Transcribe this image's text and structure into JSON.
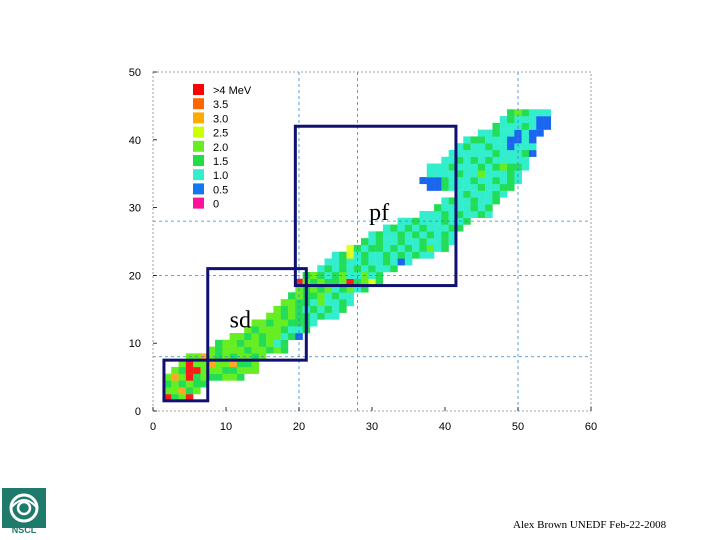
{
  "chart_data": {
    "type": "heatmap",
    "title": "",
    "xlabel": "",
    "ylabel": "",
    "xlim": [
      0,
      60
    ],
    "ylim": [
      0,
      50
    ],
    "xticks": [
      "0",
      "10",
      "20",
      "30",
      "40",
      "50",
      "60"
    ],
    "yticks": [
      "0",
      "10",
      "20",
      "30",
      "40",
      "50"
    ],
    "grid": "dashed at 20, 28, 50 (x) and 8, 20, 28 (y)",
    "legend": {
      "placement": "top-left",
      "entries": [
        {
          "label": ">4 MeV",
          "color": "#ff0000"
        },
        {
          "label": "3.5",
          "color": "#ff6600"
        },
        {
          "label": "3.0",
          "color": "#ffaa00"
        },
        {
          "label": "2.5",
          "color": "#ccff00"
        },
        {
          "label": "2.0",
          "color": "#66ee22"
        },
        {
          "label": "1.5",
          "color": "#22dd44"
        },
        {
          "label": "1.0",
          "color": "#33eecc"
        },
        {
          "label": "0.5",
          "color": "#1177ee"
        },
        {
          "label": "0",
          "color": "#ff1199"
        }
      ]
    },
    "regions": [
      {
        "label": "",
        "x": [
          1.5,
          7.5
        ],
        "y": [
          1.5,
          7.5
        ]
      },
      {
        "label": "sd",
        "x": [
          7.5,
          21.0
        ],
        "y": [
          7.5,
          21.0
        ]
      },
      {
        "label": "pf",
        "x": [
          19.5,
          41.5
        ],
        "y": [
          18.5,
          42.0
        ]
      }
    ],
    "cell_rows": [
      {
        "y": 2,
        "x_start": 2,
        "values": [
          4,
          1.5,
          2,
          4
        ]
      },
      {
        "y": 3,
        "x_start": 2,
        "values": [
          2,
          2,
          3,
          1.5,
          2
        ]
      },
      {
        "y": 4,
        "x_start": 2,
        "values": [
          1.5,
          2,
          1.5,
          2,
          1.5,
          1.5
        ]
      },
      {
        "y": 5,
        "x_start": 2,
        "values": [
          2,
          3,
          2,
          4,
          1.5,
          2,
          1.5,
          1.5,
          2,
          2,
          1.5
        ]
      },
      {
        "y": 6,
        "x_start": 3,
        "values": [
          2,
          1.5,
          4,
          4,
          2,
          2,
          2,
          1.5,
          1.5,
          2,
          2,
          2
        ]
      },
      {
        "y": 7,
        "x_start": 4,
        "values": [
          2,
          4,
          2,
          2,
          3,
          2,
          2,
          3,
          1.5,
          1.5,
          2
        ]
      },
      {
        "y": 8,
        "x_start": 5,
        "values": [
          2,
          2,
          3,
          2,
          1.5,
          2,
          1.5,
          2,
          2,
          1.5,
          2
        ]
      },
      {
        "y": 9,
        "x_start": 8,
        "values": [
          2,
          1.5,
          2,
          2,
          2,
          1.5,
          2,
          2,
          1.5,
          2,
          1.5
        ]
      },
      {
        "y": 10,
        "x_start": 9,
        "values": [
          1.5,
          2,
          2,
          1.5,
          2,
          2,
          1.5,
          2,
          1,
          1.5
        ]
      },
      {
        "y": 11,
        "x_start": 11,
        "values": [
          2,
          2,
          1.5,
          2,
          1.5,
          2,
          2,
          1,
          1.5,
          0.5
        ]
      },
      {
        "y": 12,
        "x_start": 13,
        "values": [
          2,
          1.5,
          2,
          2,
          2,
          1.5,
          1,
          1,
          1.5
        ]
      },
      {
        "y": 13,
        "x_start": 14,
        "values": [
          2,
          2,
          1.5,
          2,
          2,
          1.5,
          1.5,
          1.5,
          1
        ]
      },
      {
        "y": 14,
        "x_start": 16,
        "values": [
          2,
          2,
          1.5,
          2,
          1.5,
          1.5,
          1,
          1.5,
          1,
          1
        ]
      },
      {
        "y": 15,
        "x_start": 17,
        "values": [
          2,
          1.5,
          2,
          1.5,
          1,
          1.5,
          1,
          1.5,
          1,
          1.5
        ]
      },
      {
        "y": 16,
        "x_start": 18,
        "values": [
          2,
          2,
          1.5,
          1.5,
          1,
          2,
          1,
          1,
          1.5,
          1
        ]
      },
      {
        "y": 17,
        "x_start": 19,
        "values": [
          1.5,
          2,
          1.5,
          1.5,
          2,
          1,
          1.5,
          1,
          1
        ]
      },
      {
        "y": 18,
        "x_start": 20,
        "values": [
          2,
          1.5,
          2,
          1.5,
          2,
          1,
          1.5,
          2,
          1,
          1.5
        ]
      },
      {
        "y": 19,
        "x_start": 20,
        "values": [
          4,
          2,
          1.5,
          2,
          1.5,
          1.5,
          2,
          4,
          1.5,
          2,
          2.5,
          1.5
        ]
      },
      {
        "y": 20,
        "x_start": 21,
        "values": [
          1.5,
          2,
          1.5,
          1,
          1.5,
          2,
          1,
          1,
          2,
          1,
          1.5
        ]
      },
      {
        "y": 21,
        "x_start": 23,
        "values": [
          1,
          1.5,
          1,
          1.5,
          1,
          1.5,
          1,
          1.5,
          1,
          1,
          1.5
        ]
      },
      {
        "y": 22,
        "x_start": 24,
        "values": [
          1,
          1,
          1.5,
          1,
          1,
          1.5,
          1,
          1,
          1.5,
          1,
          0.5,
          1
        ]
      },
      {
        "y": 23,
        "x_start": 25,
        "values": [
          1,
          1.5,
          2.5,
          1,
          1.5,
          1,
          1,
          1.5,
          1,
          1.5,
          1,
          1.5,
          1,
          1
        ]
      },
      {
        "y": 24,
        "x_start": 27,
        "values": [
          2.5,
          1.5,
          1,
          1.5,
          1.5,
          1,
          1.5,
          1,
          1.5,
          1,
          1.5,
          2,
          1,
          1.5
        ]
      },
      {
        "y": 25,
        "x_start": 29,
        "values": [
          1.5,
          1,
          1.5,
          1,
          1,
          1.5,
          1,
          1,
          1.5,
          1,
          1,
          1.5,
          1
        ]
      },
      {
        "y": 26,
        "x_start": 30,
        "values": [
          1,
          1.5,
          1,
          1,
          1.5,
          1,
          1.5,
          1,
          1.5,
          1,
          1.5,
          1
        ]
      },
      {
        "y": 27,
        "x_start": 32,
        "values": [
          1,
          1.5,
          1,
          1.5,
          1,
          1.5,
          1,
          1,
          1,
          1.5,
          1.5
        ]
      },
      {
        "y": 28,
        "x_start": 34,
        "values": [
          1,
          1,
          1.5,
          1,
          1,
          1,
          1.5,
          1,
          1,
          1.5
        ]
      },
      {
        "y": 29,
        "x_start": 37,
        "values": [
          1,
          1,
          1,
          1.5,
          1,
          1.5,
          1,
          1,
          1.5,
          1
        ]
      },
      {
        "y": 30,
        "x_start": 39,
        "values": [
          1.5,
          1,
          1,
          1,
          1,
          1.5,
          1,
          1.5
        ]
      },
      {
        "y": 31,
        "x_start": 40,
        "values": [
          1,
          1.5,
          1,
          1,
          1.5,
          1,
          1,
          1.5
        ]
      },
      {
        "y": 32,
        "x_start": 42,
        "values": [
          1,
          1.5,
          1,
          1,
          1,
          1.5,
          1
        ]
      },
      {
        "y": 33,
        "x_start": 43,
        "values": [
          1,
          1,
          1.5,
          1,
          1,
          1.5,
          1.5
        ]
      },
      {
        "y": 34,
        "x_start": 46,
        "values": [
          1,
          1.5,
          1,
          1,
          1.5
        ]
      },
      {
        "y": 35,
        "x_start": 48,
        "values": [
          1.5,
          1,
          1
        ]
      },
      {
        "y": 36,
        "x_start": 49,
        "values": [
          1,
          1.5
        ]
      },
      {
        "y": 37,
        "x_start": 50,
        "values": [
          1.5
        ]
      }
    ],
    "cell_rows_upper": [
      {
        "y": 33,
        "x_start": 38,
        "values": [
          0.5,
          0.5,
          1.5,
          1,
          1
        ]
      },
      {
        "y": 34,
        "x_start": 37,
        "values": [
          0.5,
          0.5,
          0.5,
          1.5,
          1,
          1,
          1,
          1.5,
          1,
          1,
          1.5,
          1,
          1.5,
          1
        ]
      },
      {
        "y": 35,
        "x_start": 38,
        "values": [
          1,
          1,
          1,
          1,
          1.5,
          1,
          1,
          2,
          1,
          1,
          1,
          1.5,
          1
        ]
      },
      {
        "y": 36,
        "x_start": 38,
        "values": [
          1,
          1,
          1,
          1.5,
          1,
          1,
          1,
          1.5,
          1,
          1.5,
          2,
          1.5,
          1.5,
          1
        ]
      },
      {
        "y": 37,
        "x_start": 40,
        "values": [
          1,
          1,
          1.5,
          1,
          1.5,
          1,
          1.5,
          1,
          1,
          1,
          1,
          1
        ]
      },
      {
        "y": 38,
        "x_start": 41,
        "values": [
          1,
          1,
          1,
          1,
          1,
          1,
          1.5,
          1,
          1,
          1,
          1.5,
          0.5
        ]
      },
      {
        "y": 39,
        "x_start": 42,
        "values": [
          1,
          1.5,
          1,
          1,
          1.5,
          1,
          1,
          0.5,
          1,
          1,
          1
        ]
      },
      {
        "y": 40,
        "x_start": 43,
        "values": [
          1,
          1.5,
          1.5,
          1,
          1,
          1,
          0.5,
          0.5,
          1,
          0.5
        ]
      },
      {
        "y": 41,
        "x_start": 45,
        "values": [
          1,
          1,
          1.5,
          1,
          1,
          0.5,
          1,
          0.5,
          0.5
        ]
      },
      {
        "y": 42,
        "x_start": 47,
        "values": [
          1.5,
          1,
          1,
          1,
          1.5,
          1,
          0.5,
          0.5
        ]
      },
      {
        "y": 43,
        "x_start": 48,
        "values": [
          1,
          1.5,
          1,
          1,
          1,
          0.5,
          0.5
        ]
      },
      {
        "y": 44,
        "x_start": 49,
        "values": [
          1.5,
          2,
          1.5,
          1,
          1,
          1
        ]
      }
    ]
  },
  "footer": {
    "credit": "Alex Brown UNEDF Feb-22-2008"
  },
  "logo": {
    "text": "NSCL"
  }
}
